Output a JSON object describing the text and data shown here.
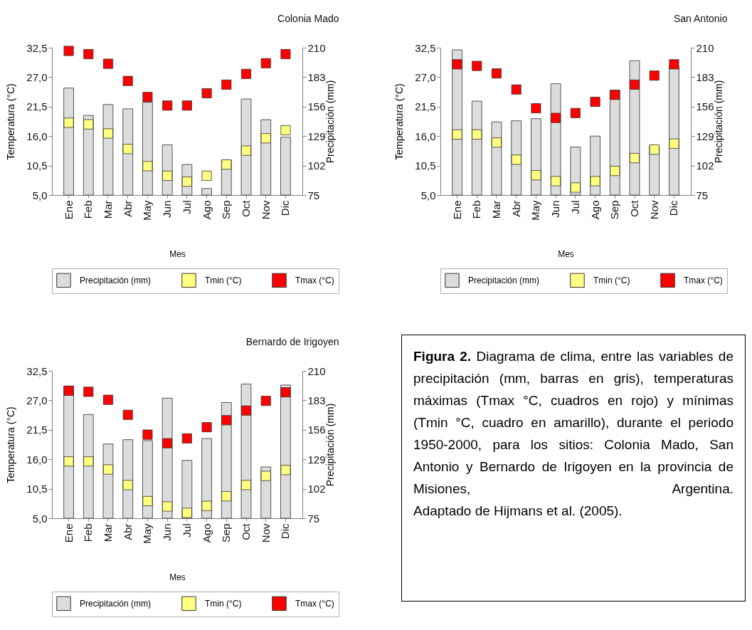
{
  "chart_data": [
    {
      "type": "bar",
      "title": "Colonia Mado",
      "xlabel": "Mes",
      "ylabel": "Temperatura (°C)",
      "y2label": "Precipitación (mm)",
      "categories": [
        "Ene",
        "Feb",
        "Mar",
        "Abr",
        "May",
        "Jun",
        "Jul",
        "Ago",
        "Sep",
        "Oct",
        "Nov",
        "Dic"
      ],
      "series": [
        {
          "name": "Precipitación (mm)",
          "type": "bar",
          "axis": "y2",
          "color": "#dcdcdc",
          "values": [
            173,
            148,
            158,
            154,
            160,
            121,
            103,
            81,
            107,
            163,
            144,
            128
          ]
        },
        {
          "name": "Tmin (°C)",
          "type": "scatter",
          "color": "#ffff80",
          "values": [
            18.5,
            18.2,
            16.5,
            13.6,
            10.4,
            8.6,
            7.5,
            8.6,
            10.7,
            13.3,
            15.6,
            17.1
          ]
        },
        {
          "name": "Tmax (°C)",
          "type": "scatter",
          "color": "#ff0000",
          "values": [
            31.9,
            31.3,
            29.5,
            26.3,
            23.3,
            21.7,
            21.7,
            24.0,
            25.6,
            27.6,
            29.6,
            31.3
          ]
        }
      ],
      "ylim": [
        5,
        32.5
      ],
      "yticks": [
        {
          "value": 5,
          "label": "5,0"
        },
        {
          "value": 10.5,
          "label": "10,5"
        },
        {
          "value": 16,
          "label": "16,0"
        },
        {
          "value": 21.5,
          "label": "21,5"
        },
        {
          "value": 27,
          "label": "27,0"
        },
        {
          "value": 32.5,
          "label": "32,5"
        }
      ],
      "y2lim": [
        75,
        210
      ],
      "y2ticks": [
        75,
        102,
        129,
        156,
        183,
        210
      ],
      "marker": "square",
      "legend": "bottom"
    },
    {
      "type": "bar",
      "title": "San Antonio",
      "xlabel": "Mes",
      "ylabel": "Temperatura (°C)",
      "y2label": "Precipitación (mm)",
      "categories": [
        "Ene",
        "Feb",
        "Mar",
        "Abr",
        "May",
        "Jun",
        "Jul",
        "Ago",
        "Sep",
        "Oct",
        "Nov",
        "Dic"
      ],
      "series": [
        {
          "name": "Precipitación (mm)",
          "type": "bar",
          "axis": "y2",
          "color": "#dcdcdc",
          "values": [
            208,
            161,
            142,
            143,
            145,
            177,
            119,
            129,
            171,
            198,
            120,
            193
          ]
        },
        {
          "name": "Tmin (°C)",
          "type": "scatter",
          "color": "#ffff80",
          "values": [
            16.3,
            16.3,
            14.8,
            11.6,
            8.7,
            7.6,
            6.4,
            7.6,
            9.5,
            11.9,
            13.5,
            14.6
          ]
        },
        {
          "name": "Tmax (°C)",
          "type": "scatter",
          "color": "#ff0000",
          "values": [
            29.4,
            29.1,
            27.7,
            24.7,
            21.2,
            19.4,
            20.3,
            22.4,
            23.7,
            25.6,
            27.3,
            29.4
          ]
        }
      ],
      "ylim": [
        5,
        32.5
      ],
      "yticks": [
        {
          "value": 5,
          "label": "5,0"
        },
        {
          "value": 10.5,
          "label": "10,5"
        },
        {
          "value": 16,
          "label": "16,0"
        },
        {
          "value": 21.5,
          "label": "21,5"
        },
        {
          "value": 27,
          "label": "27,0"
        },
        {
          "value": 32.5,
          "label": "32,5"
        }
      ],
      "y2lim": [
        75,
        210
      ],
      "y2ticks": [
        75,
        102,
        129,
        156,
        183,
        210
      ],
      "marker": "square",
      "legend": "bottom"
    },
    {
      "type": "bar",
      "title": "Bernardo de Irigoyen",
      "xlabel": "Mes",
      "ylabel": "Temperatura (°C)",
      "y2label": "Precipitación (mm)",
      "categories": [
        "Ene",
        "Feb",
        "Mar",
        "Abr",
        "May",
        "Jun",
        "Jul",
        "Ago",
        "Sep",
        "Oct",
        "Nov",
        "Dic"
      ],
      "series": [
        {
          "name": "Precipitación (mm)",
          "type": "bar",
          "axis": "y2",
          "color": "#dcdcdc",
          "values": [
            196,
            170,
            143,
            147,
            146,
            185,
            128,
            148,
            181,
            198,
            122,
            197
          ]
        },
        {
          "name": "Tmin (°C)",
          "type": "scatter",
          "color": "#ffff80",
          "values": [
            15.6,
            15.6,
            14.1,
            11.2,
            8.2,
            7.2,
            6.0,
            7.3,
            9.1,
            11.2,
            12.9,
            14.0
          ]
        },
        {
          "name": "Tmax (°C)",
          "type": "scatter",
          "color": "#ff0000",
          "values": [
            28.8,
            28.6,
            27.1,
            24.3,
            20.6,
            19.0,
            19.9,
            22.0,
            23.3,
            25.1,
            26.9,
            28.5
          ]
        }
      ],
      "ylim": [
        5,
        32.5
      ],
      "yticks": [
        {
          "value": 5,
          "label": "5,0"
        },
        {
          "value": 10.5,
          "label": "10,5"
        },
        {
          "value": 16,
          "label": "16,0"
        },
        {
          "value": 21.5,
          "label": "21,5"
        },
        {
          "value": 27,
          "label": "27,0"
        },
        {
          "value": 32.5,
          "label": "32,5"
        }
      ],
      "y2lim": [
        75,
        210
      ],
      "y2ticks": [
        75,
        102,
        129,
        156,
        183,
        210
      ],
      "marker": "square",
      "legend": "bottom"
    },
    {
      "type": "other",
      "title": "Figura 2.",
      "annotations": [
        "Diagrama de clima, entre las variables de precipitación (mm, barras en gris), temperaturas máximas (Tmax °C, cuadros en rojo) y mínimas (Tmin °C, cuadro en amarillo), durante el periodo 1950-2000, para los sitios: Colonia Mado, San Antonio y Bernardo de Irigoyen en la provincia de Misiones, Argentina.",
        "Adaptado de Hijmans et al. (2005)."
      ]
    }
  ]
}
